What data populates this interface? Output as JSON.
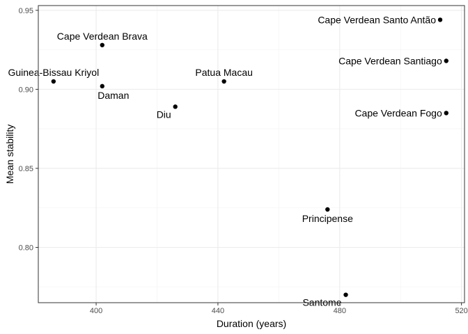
{
  "chart_data": {
    "type": "scatter",
    "title": "",
    "xlabel": "Duration (years)",
    "ylabel": "Mean stability",
    "xlim": [
      381,
      521
    ],
    "ylim": [
      0.765,
      0.953
    ],
    "x_ticks": [
      {
        "value": 400,
        "label": "400"
      },
      {
        "value": 440,
        "label": "440"
      },
      {
        "value": 480,
        "label": "480"
      },
      {
        "value": 520,
        "label": "520"
      }
    ],
    "y_ticks": [
      {
        "value": 0.8,
        "label": "0.80"
      },
      {
        "value": 0.85,
        "label": "0.85"
      },
      {
        "value": 0.9,
        "label": "0.90"
      },
      {
        "value": 0.95,
        "label": "0.95"
      }
    ],
    "grid": true,
    "theme": "bw",
    "points": [
      {
        "label": "Guinea-Bissau Kriyol",
        "x": 386,
        "y": 0.905,
        "label_anchor": "middle",
        "label_pos": "above"
      },
      {
        "label": "Cape Verdean Brava",
        "x": 402,
        "y": 0.928,
        "label_anchor": "middle",
        "label_pos": "above"
      },
      {
        "label": "Daman",
        "x": 402,
        "y": 0.902,
        "label_anchor": "end-ish",
        "label_pos": "below"
      },
      {
        "label": "Diu",
        "x": 426,
        "y": 0.889,
        "label_anchor": "end",
        "label_pos": "below-left"
      },
      {
        "label": "Patua Macau",
        "x": 442,
        "y": 0.905,
        "label_anchor": "middle",
        "label_pos": "above"
      },
      {
        "label": "Principense",
        "x": 476,
        "y": 0.824,
        "label_anchor": "middle",
        "label_pos": "below"
      },
      {
        "label": "Santome",
        "x": 482,
        "y": 0.77,
        "label_anchor": "end",
        "label_pos": "below-left"
      },
      {
        "label": "Cape Verdean Santo Antão",
        "x": 513,
        "y": 0.944,
        "label_anchor": "end",
        "label_pos": "left"
      },
      {
        "label": "Cape Verdean Santiago",
        "x": 515,
        "y": 0.918,
        "label_anchor": "end",
        "label_pos": "left"
      },
      {
        "label": "Cape Verdean Fogo",
        "x": 515,
        "y": 0.885,
        "label_anchor": "end",
        "label_pos": "left"
      }
    ],
    "colors": {
      "point": "#000000",
      "panel_border": "#333333",
      "grid_major": "#ebebeb",
      "grid_minor": "#f5f5f5"
    }
  }
}
